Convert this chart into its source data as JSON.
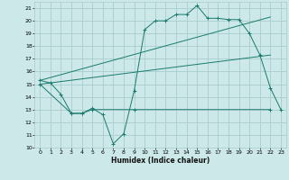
{
  "xlabel": "Humidex (Indice chaleur)",
  "bg_color": "#cce8e8",
  "grid_color": "#aacccc",
  "line_color": "#1a7a6e",
  "xlim": [
    -0.5,
    23.5
  ],
  "ylim": [
    10,
    21.5
  ],
  "yticks": [
    10,
    11,
    12,
    13,
    14,
    15,
    16,
    17,
    18,
    19,
    20,
    21
  ],
  "xticks": [
    0,
    1,
    2,
    3,
    4,
    5,
    6,
    7,
    8,
    9,
    10,
    11,
    12,
    13,
    14,
    15,
    16,
    17,
    18,
    19,
    20,
    21,
    22,
    23
  ],
  "series1_x": [
    0,
    1,
    2,
    3,
    4,
    5,
    6,
    7,
    8,
    9,
    10,
    11,
    12,
    13,
    14,
    15,
    16,
    17,
    18,
    19,
    20,
    21,
    22,
    23
  ],
  "series1_y": [
    15.3,
    15.1,
    14.2,
    12.7,
    12.7,
    13.1,
    12.6,
    10.3,
    11.1,
    14.5,
    19.3,
    20.0,
    20.0,
    20.5,
    20.5,
    21.2,
    20.2,
    20.2,
    20.1,
    20.1,
    19.0,
    17.3,
    14.7,
    13.0
  ],
  "series2_x": [
    0,
    3,
    4,
    5,
    9,
    22
  ],
  "series2_y": [
    15.0,
    12.7,
    12.7,
    13.0,
    13.0,
    13.0
  ],
  "series3_x": [
    0,
    22
  ],
  "series3_y": [
    15.3,
    20.3
  ],
  "series4_x": [
    0,
    22
  ],
  "series4_y": [
    15.0,
    17.3
  ]
}
